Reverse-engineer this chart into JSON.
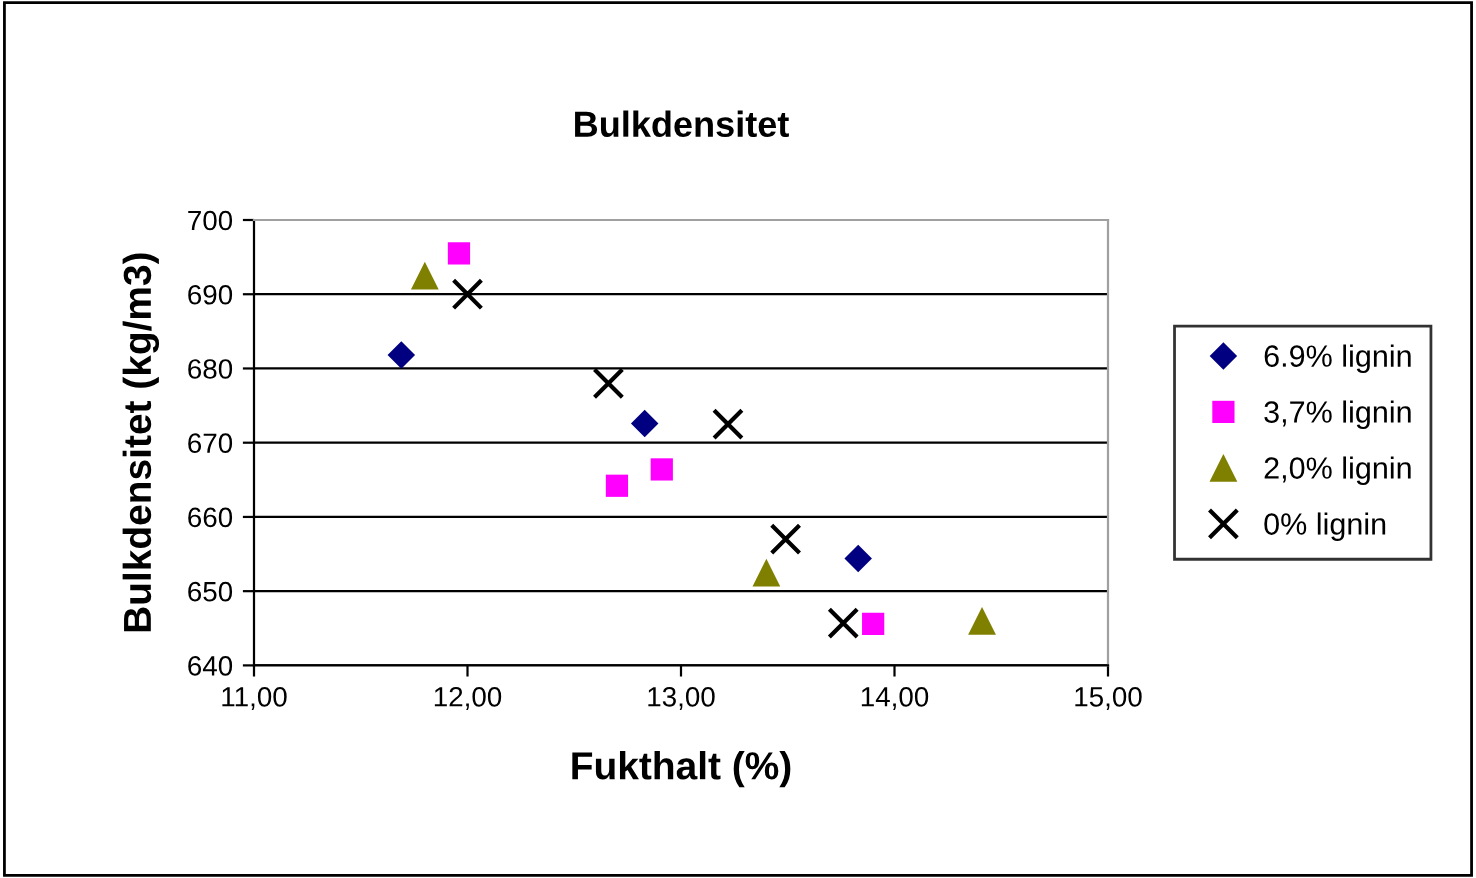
{
  "chart_data": {
    "type": "scatter",
    "title": "Bulkdensitet",
    "xlabel": "Fukthalt (%)",
    "ylabel": "Bulkdensitet (kg/m3)",
    "xlim": [
      11,
      15
    ],
    "xticks": [
      {
        "value": 11,
        "label": "11,00"
      },
      {
        "value": 12,
        "label": "12,00"
      },
      {
        "value": 13,
        "label": "13,00"
      },
      {
        "value": 14,
        "label": "14,00"
      },
      {
        "value": 15,
        "label": "15,00"
      }
    ],
    "ylim": [
      640,
      700
    ],
    "yticks": [
      640,
      650,
      660,
      670,
      680,
      690,
      700
    ],
    "grid": "y",
    "legend": "right",
    "series": [
      {
        "name": "6.9% lignin",
        "color": "#000080",
        "marker": "diamond",
        "x": [
          11.69,
          12.83,
          13.83
        ],
        "values": [
          681.8,
          672.6,
          654.4
        ]
      },
      {
        "name": "3,7% lignin",
        "color": "#ff00ff",
        "marker": "square",
        "x": [
          11.96,
          12.7,
          12.91,
          13.9
        ],
        "values": [
          695.5,
          664.2,
          666.4,
          645.6
        ]
      },
      {
        "name": "2,0% lignin",
        "color": "#808000",
        "marker": "triangle",
        "x": [
          11.8,
          13.4,
          14.41
        ],
        "values": [
          692.5,
          652.5,
          646
        ]
      },
      {
        "name": "0% lignin",
        "color": "#000000",
        "marker": "cross",
        "x": [
          12.0,
          12.66,
          13.22,
          13.49,
          13.76
        ],
        "values": [
          690,
          678,
          672.5,
          657,
          645.7
        ]
      }
    ]
  }
}
